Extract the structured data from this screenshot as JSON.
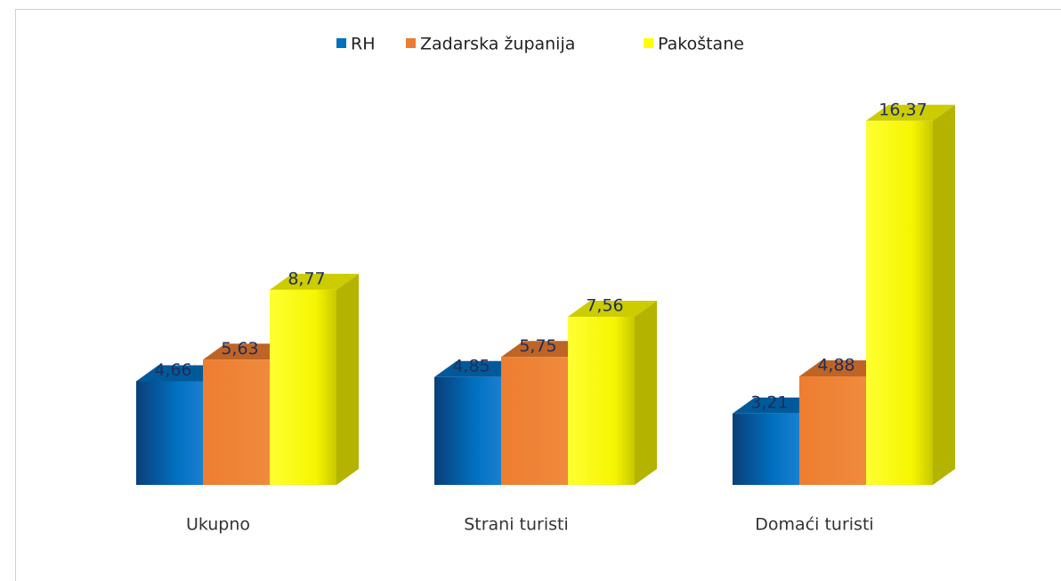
{
  "chart_data": {
    "type": "bar3d",
    "categories": [
      "Ukupno",
      "Strani turisti",
      "Domaći turisti"
    ],
    "series": [
      {
        "name": "RH",
        "color": "#0070c0",
        "values": [
          4.66,
          4.85,
          3.21
        ],
        "value_labels": [
          "4,66",
          "4,85",
          "3,21"
        ]
      },
      {
        "name": "Zadarska županija",
        "color": "#ed7d31",
        "values": [
          5.63,
          5.75,
          4.88
        ],
        "value_labels": [
          "5,63",
          "5,75",
          "4,88"
        ]
      },
      {
        "name": "Pakoštane",
        "color": "#ffff00",
        "values": [
          8.77,
          7.56,
          16.37
        ],
        "value_labels": [
          "8,77",
          "7,56",
          "16,37"
        ]
      }
    ],
    "legend": "top"
  }
}
